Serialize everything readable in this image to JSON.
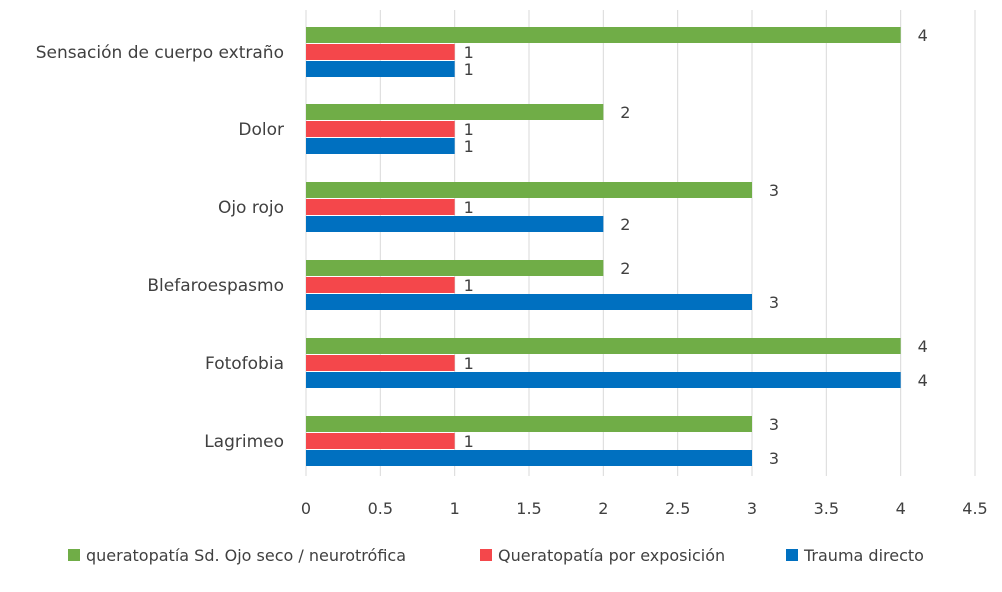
{
  "chart_data": {
    "type": "bar",
    "orientation": "horizontal",
    "categories": [
      "Sensación de cuerpo extraño",
      "Dolor",
      "Ojo rojo",
      "Blefaroespasmo",
      "Fotofobia",
      "Lagrimeo"
    ],
    "series": [
      {
        "name": "queratopatía Sd. Ojo seco / neurotrófica",
        "color": "#70ad47",
        "values": [
          4,
          2,
          3,
          2,
          4,
          3
        ]
      },
      {
        "name": "Queratopatía por exposición",
        "color": "#f4474b",
        "values": [
          1,
          1,
          1,
          1,
          1,
          1
        ]
      },
      {
        "name": "Trauma directo",
        "color": "#0070c0",
        "values": [
          1,
          1,
          2,
          3,
          4,
          3
        ]
      }
    ],
    "xlim": [
      0,
      4.5
    ],
    "xticks": [
      "0",
      "0.5",
      "1",
      "1.5",
      "2",
      "2.5",
      "3",
      "3.5",
      "4",
      "4.5"
    ],
    "xtick_values": [
      0,
      0.5,
      1,
      1.5,
      2,
      2.5,
      3,
      3.5,
      4,
      4.5
    ],
    "grid": "vertical",
    "legend": "bottom",
    "data_labels": true
  }
}
